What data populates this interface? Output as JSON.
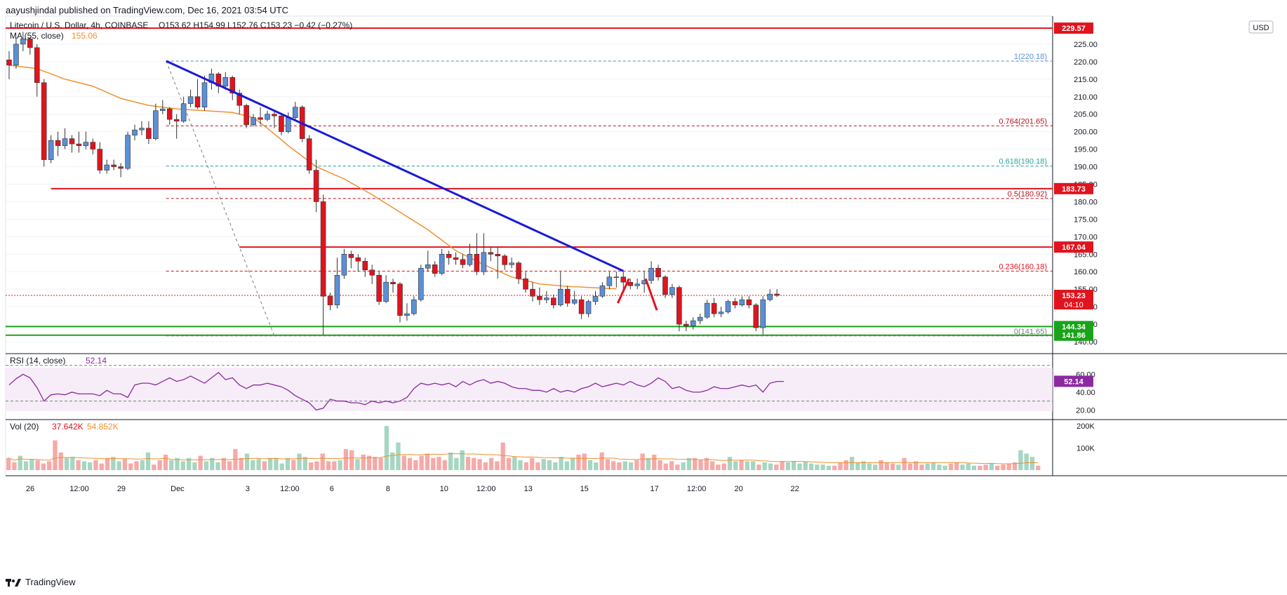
{
  "header": {
    "publisher": "aayushjindal published on TradingView.com, Dec 16, 2021 03:54 UTC"
  },
  "legend": {
    "symbol": "Litecoin / U.S. Dollar, 4h, COINBASE",
    "ohlc": "O153.62  H154.99  L152.76  C153.23  −0.42 (−0.27%)",
    "ma_label": "MA (55, close)",
    "ma_value": "155.06",
    "currency": "USD"
  },
  "rsi_panel": {
    "label": "RSI (14, close)",
    "value": "52.14",
    "ticks": [
      "60.00",
      "40.00",
      "20.00"
    ]
  },
  "vol_panel": {
    "label": "Vol (20)",
    "value1": "37.642K",
    "value2": "54.852K",
    "ticks": [
      "200K",
      "100K"
    ]
  },
  "footer": {
    "brand": "TradingView"
  },
  "colors": {
    "up": "#5b8fd6",
    "down": "#e0141e",
    "ma": "#f0902e",
    "trend": "#1a1ad6",
    "support": "#1aa31a",
    "resistance": "#e0141e",
    "rsi": "#8b2aa0"
  },
  "chart_data": {
    "type": "candlestick",
    "price_axis": {
      "ylim": [
        138,
        233
      ],
      "ticks": [
        "225.00",
        "220.00",
        "215.00",
        "210.00",
        "205.00",
        "200.00",
        "195.00",
        "190.00",
        "185.00",
        "180.00",
        "175.00",
        "170.00",
        "165.00",
        "160.00",
        "155.00",
        "150.00",
        "145.00",
        "140.00"
      ],
      "tick_values": [
        225,
        220,
        215,
        210,
        205,
        200,
        195,
        190,
        185,
        180,
        175,
        170,
        165,
        160,
        155,
        150,
        145,
        140
      ]
    },
    "time_axis": {
      "labels": [
        "26",
        "12:00",
        "29",
        "Dec",
        "3",
        "12:00",
        "6",
        "8",
        "10",
        "12:00",
        "13",
        "15",
        "17",
        "12:00",
        "20",
        "22"
      ],
      "bar_index": [
        3,
        10,
        16,
        24,
        34,
        40,
        46,
        54,
        62,
        68,
        74,
        82,
        92,
        98,
        104,
        112
      ]
    },
    "horizontal_levels": [
      {
        "value": 229.57,
        "label": "229.57",
        "kind": "resistance"
      },
      {
        "value": 183.73,
        "label": "183.73",
        "kind": "resistance",
        "from_bar": 6
      },
      {
        "value": 167.04,
        "label": "167.04",
        "kind": "resistance",
        "from_bar": 33
      },
      {
        "value": 144.34,
        "label": "144.34",
        "kind": "support"
      },
      {
        "value": 141.86,
        "label": "141.86",
        "kind": "support"
      }
    ],
    "fibonacci": [
      {
        "ratio": "1",
        "value": 220.18,
        "label": "1(220.18)"
      },
      {
        "ratio": "0.764",
        "value": 201.65,
        "label": "0.764(201.65)"
      },
      {
        "ratio": "0.618",
        "value": 190.18,
        "label": "0.618(190.18)"
      },
      {
        "ratio": "0.5",
        "value": 180.92,
        "label": "0.5(180.92)"
      },
      {
        "ratio": "0.236",
        "value": 160.18,
        "label": "0.236(160.18)"
      },
      {
        "ratio": "0",
        "value": 141.65,
        "label": "0(141.65)"
      }
    ],
    "trendline": {
      "from": [
        22.5,
        220.18
      ],
      "to": [
        88,
        160.2
      ]
    },
    "fib_diagonal": {
      "from": [
        22.5,
        220.18
      ],
      "to": [
        38,
        141.65
      ]
    },
    "last_price": {
      "value": 153.23,
      "label": "153.23",
      "countdown": "04:10"
    },
    "ma55": [
      [
        0,
        219.0
      ],
      [
        4,
        218.0
      ],
      [
        8,
        215.0
      ],
      [
        12,
        213.0
      ],
      [
        16,
        209.5
      ],
      [
        20,
        207.5
      ],
      [
        24,
        206.5
      ],
      [
        28,
        206.0
      ],
      [
        32,
        205.5
      ],
      [
        35,
        204.0
      ],
      [
        37,
        201.0
      ],
      [
        40,
        196.0
      ],
      [
        44,
        190.0
      ],
      [
        48,
        186.5
      ],
      [
        52,
        182.0
      ],
      [
        56,
        177.0
      ],
      [
        60,
        172.0
      ],
      [
        64,
        166.0
      ],
      [
        68,
        162.0
      ],
      [
        72,
        158.5
      ],
      [
        76,
        156.5
      ],
      [
        80,
        155.8
      ],
      [
        84,
        155.4
      ],
      [
        87,
        155.1
      ]
    ],
    "candles": [
      [
        220.5,
        219.0,
        223.0,
        215.0
      ],
      [
        219.0,
        225.0,
        227.0,
        218.0
      ],
      [
        225.0,
        226.5,
        228.5,
        223.0
      ],
      [
        226.5,
        224.0,
        227.0,
        222.0
      ],
      [
        224.0,
        214.0,
        225.0,
        210.0
      ],
      [
        214.0,
        192.0,
        215.0,
        190.0
      ],
      [
        192.0,
        197.5,
        199.0,
        191.0
      ],
      [
        197.5,
        196.0,
        200.0,
        193.0
      ],
      [
        196.0,
        198.0,
        201.0,
        195.0
      ],
      [
        198.0,
        196.5,
        199.0,
        194.0
      ],
      [
        196.5,
        196.0,
        200.0,
        194.0
      ],
      [
        196.0,
        197.0,
        200.0,
        195.0
      ],
      [
        197.0,
        195.0,
        198.0,
        193.5
      ],
      [
        195.0,
        189.0,
        197.0,
        188.0
      ],
      [
        189.0,
        190.5,
        192.0,
        188.0
      ],
      [
        190.5,
        190.0,
        192.0,
        189.0
      ],
      [
        190.0,
        189.5,
        191.0,
        187.0
      ],
      [
        189.5,
        199.0,
        200.0,
        189.0
      ],
      [
        199.0,
        200.5,
        202.0,
        197.5
      ],
      [
        200.5,
        201.0,
        203.0,
        199.0
      ],
      [
        201.0,
        198.0,
        203.0,
        196.5
      ],
      [
        198.0,
        206.0,
        208.0,
        197.5
      ],
      [
        206.0,
        206.5,
        209.0,
        205.0
      ],
      [
        206.5,
        203.5,
        207.0,
        202.0
      ],
      [
        203.5,
        203.0,
        205.0,
        198.0
      ],
      [
        203.0,
        208.0,
        210.0,
        202.5
      ],
      [
        208.0,
        210.0,
        212.0,
        207.0
      ],
      [
        210.0,
        207.0,
        215.0,
        206.5
      ],
      [
        207.0,
        214.0,
        216.0,
        206.0
      ],
      [
        214.0,
        216.5,
        218.0,
        212.0
      ],
      [
        216.5,
        213.0,
        217.0,
        211.0
      ],
      [
        213.0,
        215.5,
        217.0,
        212.0
      ],
      [
        215.5,
        211.0,
        216.0,
        209.0
      ],
      [
        211.0,
        207.5,
        212.0,
        205.0
      ],
      [
        207.5,
        202.0,
        208.0,
        201.0
      ],
      [
        202.0,
        204.0,
        205.0,
        201.5
      ],
      [
        204.0,
        203.5,
        207.0,
        202.0
      ],
      [
        203.5,
        205.0,
        206.0,
        203.0
      ],
      [
        205.0,
        204.5,
        206.0,
        201.0
      ],
      [
        204.5,
        200.0,
        205.0,
        199.0
      ],
      [
        200.0,
        204.0,
        205.5,
        199.5
      ],
      [
        204.0,
        207.0,
        208.5,
        203.0
      ],
      [
        207.0,
        198.0,
        207.5,
        197.0
      ],
      [
        198.0,
        189.0,
        199.0,
        188.0
      ],
      [
        189.0,
        180.0,
        192.0,
        177.0
      ],
      [
        180.0,
        153.0,
        182.0,
        142.0
      ],
      [
        153.0,
        150.5,
        154.0,
        149.0
      ],
      [
        150.5,
        159.0,
        164.0,
        149.5
      ],
      [
        159.0,
        165.0,
        166.5,
        158.0
      ],
      [
        165.0,
        164.0,
        166.0,
        161.0
      ],
      [
        164.0,
        163.0,
        165.0,
        160.0
      ],
      [
        163.0,
        160.5,
        164.0,
        158.5
      ],
      [
        160.5,
        159.0,
        162.0,
        156.5
      ],
      [
        159.0,
        151.5,
        160.0,
        150.5
      ],
      [
        151.5,
        157.0,
        159.0,
        151.0
      ],
      [
        157.0,
        156.5,
        158.0,
        154.0
      ],
      [
        156.5,
        147.5,
        157.0,
        145.5
      ],
      [
        147.5,
        148.0,
        151.0,
        146.0
      ],
      [
        148.0,
        152.0,
        153.0,
        147.5
      ],
      [
        152.0,
        161.0,
        162.0,
        151.5
      ],
      [
        161.0,
        162.0,
        166.0,
        160.0
      ],
      [
        162.0,
        159.5,
        163.0,
        158.5
      ],
      [
        159.5,
        165.0,
        166.5,
        159.0
      ],
      [
        165.0,
        164.0,
        166.0,
        162.0
      ],
      [
        164.0,
        163.5,
        165.5,
        162.0
      ],
      [
        163.5,
        162.0,
        165.0,
        161.0
      ],
      [
        162.0,
        165.0,
        168.0,
        161.5
      ],
      [
        165.0,
        160.0,
        171.0,
        159.0
      ],
      [
        160.0,
        165.5,
        171.0,
        159.0
      ],
      [
        165.5,
        165.0,
        167.0,
        163.0
      ],
      [
        165.0,
        164.5,
        167.0,
        158.0
      ],
      [
        164.5,
        162.0,
        165.0,
        160.5
      ],
      [
        162.0,
        162.5,
        164.0,
        161.0
      ],
      [
        162.5,
        158.0,
        163.0,
        156.5
      ],
      [
        158.0,
        155.0,
        160.0,
        154.0
      ],
      [
        155.0,
        153.0,
        157.0,
        151.5
      ],
      [
        153.0,
        152.0,
        155.5,
        150.5
      ],
      [
        152.0,
        152.5,
        154.5,
        151.0
      ],
      [
        152.5,
        150.5,
        153.5,
        149.5
      ],
      [
        150.5,
        155.0,
        160.0,
        150.0
      ],
      [
        155.0,
        151.0,
        156.0,
        150.0
      ],
      [
        151.0,
        152.0,
        154.5,
        150.5
      ],
      [
        152.0,
        148.0,
        153.0,
        146.5
      ],
      [
        148.0,
        151.5,
        152.0,
        147.0
      ],
      [
        151.5,
        153.0,
        154.5,
        150.5
      ],
      [
        153.0,
        156.0,
        157.0,
        152.5
      ],
      [
        156.0,
        158.5,
        160.0,
        155.0
      ],
      [
        158.5,
        158.5,
        160.0,
        155.5
      ],
      [
        158.5,
        157.0,
        160.0,
        155.0
      ],
      [
        157.0,
        156.0,
        158.0,
        155.0
      ],
      [
        156.0,
        156.5,
        158.0,
        155.0
      ],
      [
        156.5,
        157.5,
        160.0,
        154.0
      ],
      [
        157.5,
        161.0,
        163.0,
        156.5
      ],
      [
        161.0,
        158.5,
        162.0,
        157.5
      ],
      [
        158.5,
        153.5,
        159.0,
        152.5
      ],
      [
        153.5,
        155.5,
        156.5,
        152.5
      ],
      [
        155.5,
        145.0,
        156.0,
        143.0
      ],
      [
        145.0,
        144.5,
        146.0,
        143.0
      ],
      [
        144.5,
        146.0,
        147.0,
        143.5
      ],
      [
        146.0,
        147.0,
        148.0,
        145.0
      ],
      [
        147.0,
        151.0,
        152.0,
        146.5
      ],
      [
        151.0,
        148.0,
        152.5,
        147.0
      ],
      [
        148.0,
        148.5,
        150.0,
        147.0
      ],
      [
        148.5,
        151.5,
        152.0,
        148.0
      ],
      [
        151.5,
        150.5,
        152.5,
        149.5
      ],
      [
        150.5,
        152.0,
        153.0,
        150.0
      ],
      [
        152.0,
        150.5,
        153.0,
        149.5
      ],
      [
        150.5,
        144.0,
        151.0,
        143.0
      ],
      [
        144.0,
        152.0,
        153.0,
        142.0
      ],
      [
        152.0,
        153.6,
        155.0,
        151.5
      ],
      [
        153.62,
        153.23,
        154.99,
        152.76
      ]
    ],
    "volume": [
      {
        "range": [
          0,
          10
        ],
        "values": [
          24,
          23,
          28,
          22,
          32,
          20,
          20,
          100,
          30,
          28,
          32,
          26
        ]
      },
      {
        "range": [
          0,
          200
        ]
      }
    ],
    "rsi": [
      48,
      55,
      60,
      56,
      45,
      30,
      37,
      38,
      37,
      40,
      38,
      38,
      38,
      36,
      42,
      38,
      38,
      34,
      48,
      50,
      50,
      48,
      52,
      56,
      52,
      54,
      58,
      54,
      50,
      56,
      62,
      54,
      56,
      48,
      44,
      48,
      48,
      50,
      48,
      46,
      42,
      36,
      32,
      28,
      20,
      22,
      32,
      30,
      30,
      28,
      28,
      26,
      30,
      28,
      30,
      28,
      30,
      34,
      44,
      50,
      48,
      50,
      48,
      50,
      46,
      52,
      48,
      52,
      54,
      50,
      52,
      50,
      46,
      44,
      44,
      42,
      42,
      40,
      44,
      40,
      42,
      40,
      44,
      46,
      50,
      46,
      48,
      50,
      48,
      52,
      48,
      46,
      50,
      56,
      52,
      44,
      46,
      42,
      40,
      40,
      42,
      46,
      44,
      44,
      46,
      48,
      46,
      48,
      40,
      50,
      52,
      52
    ],
    "rsi_series_name": "",
    "vol_bars": [
      55,
      35,
      65,
      40,
      50,
      45,
      30,
      40,
      135,
      80,
      55,
      60,
      45,
      40,
      35,
      45,
      30,
      55,
      60,
      40,
      50,
      30,
      40,
      45,
      80,
      25,
      45,
      70,
      45,
      55,
      40,
      55,
      35,
      65,
      40,
      55,
      35,
      55,
      40,
      95,
      55,
      75,
      45,
      50,
      40,
      55,
      55,
      30,
      55,
      45,
      75,
      60,
      35,
      40,
      75,
      40,
      40,
      45,
      95,
      90,
      50,
      70,
      65,
      60,
      55,
      200,
      80,
      125,
      65,
      55,
      45,
      65,
      75,
      55,
      60,
      45,
      80,
      55,
      90,
      60,
      55,
      50,
      35,
      55,
      40,
      125,
      55,
      60,
      45,
      35,
      55,
      35,
      50,
      45,
      35,
      60,
      40,
      55,
      70,
      75,
      45,
      35,
      80,
      50,
      40,
      35,
      40,
      35,
      45,
      75,
      55,
      70,
      45,
      30,
      40,
      25,
      35,
      55,
      55,
      45,
      55,
      40,
      25,
      30,
      60,
      40,
      45,
      40,
      40,
      25,
      35,
      30,
      25,
      40,
      35,
      40,
      30,
      40,
      30,
      25,
      25,
      20,
      20,
      35,
      45,
      60,
      35,
      40,
      30,
      25,
      45,
      35,
      30,
      25,
      55,
      30,
      40,
      25,
      30,
      35,
      25,
      20,
      30,
      35,
      25,
      30,
      20,
      20,
      25,
      30,
      20,
      25,
      30,
      35,
      90,
      75,
      60,
      20
    ]
  }
}
